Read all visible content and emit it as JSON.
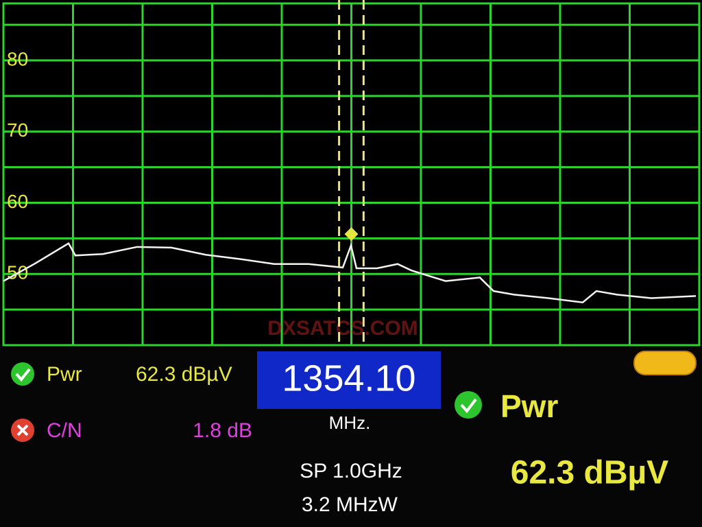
{
  "chart_data": {
    "type": "line",
    "x": [
      854.1,
      898.4,
      947.7,
      957.5,
      997.0,
      1046.2,
      1095.5,
      1144.7,
      1194.0,
      1243.3,
      1292.5,
      1341.8,
      1353.6,
      1361.5,
      1391.0,
      1420.6,
      1440.3,
      1489.6,
      1538.8,
      1558.5,
      1588.1,
      1637.4,
      1686.6,
      1706.3,
      1735.9,
      1785.2,
      1849.2
    ],
    "series": [
      {
        "color": "#f4f4f0",
        "values": [
          49.0,
          51.4,
          54.3,
          52.6,
          52.8,
          53.8,
          53.7,
          52.7,
          52.1,
          51.4,
          51.4,
          50.9,
          54.0,
          50.8,
          50.8,
          51.4,
          50.5,
          49.0,
          49.5,
          47.6,
          47.1,
          46.6,
          46.0,
          47.6,
          47.1,
          46.6,
          46.9
        ]
      }
    ],
    "xlim": [
      854.1,
      1854.1
    ],
    "xticks": [
      954.1,
      1054.1,
      1154.1,
      1254.1,
      1354.1,
      1454.1,
      1554.1,
      1654.1,
      1754.1
    ],
    "ylim": [
      40,
      88
    ],
    "yticks": [
      50,
      60,
      70,
      80,
      90
    ],
    "minor_grid": [
      45,
      55,
      65,
      75,
      85
    ],
    "grid": true,
    "grid_color": "#2ed42e",
    "label_color": "#e6e640",
    "markers": [
      1336.5,
      1371.7
    ],
    "marker_color": "#f0e680",
    "peak": {
      "x": 1354.1,
      "y": 55.6
    },
    "watermark": "DXSATCS.COM"
  },
  "status": {
    "pwr_label": "Pwr",
    "pwr_value": "62.3 dBµV",
    "cn_label": "C/N",
    "cn_value": "1.8 dB",
    "frequency": "1354.10",
    "frequency_unit": "MHz.",
    "span": "SP 1.0GHz",
    "rbw": "3.2 MHzW",
    "big_label": "Pwr",
    "big_value": "62.3 dBµV"
  }
}
